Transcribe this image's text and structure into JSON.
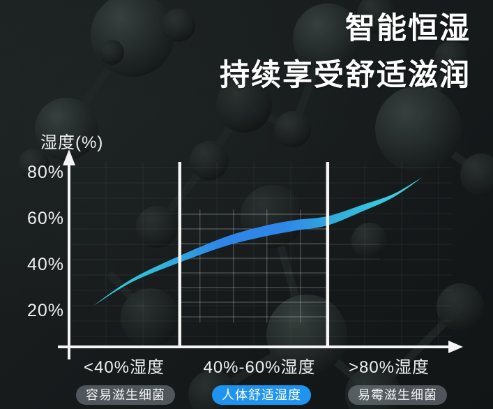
{
  "header": {
    "title_line1": "智能恒湿",
    "title_line2": "持续享受舒适滋润"
  },
  "chart_data": {
    "type": "line",
    "title": "智能恒湿 持续享受舒适滋润",
    "y_axis_label": "湿度(%)",
    "ylabel": "湿度(%)",
    "xlabel": "",
    "ylim": [
      0,
      90
    ],
    "grid": "on",
    "legend": "none",
    "y_ticks": [
      {
        "label": "80%",
        "value": 80
      },
      {
        "label": "60%",
        "value": 60
      },
      {
        "label": "40%",
        "value": 40
      },
      {
        "label": "20%",
        "value": 20
      }
    ],
    "zones": [
      {
        "label": "<40%湿度",
        "badge": "容易滋生细菌",
        "highlighted": false
      },
      {
        "label": "40%-60%湿度",
        "badge": "人体舒适湿度",
        "highlighted": true
      },
      {
        "label": ">80%湿度",
        "badge": "易霉滋生细菌",
        "highlighted": false
      }
    ],
    "zone_boundaries_fraction": [
      0.283,
      0.661
    ],
    "curve_points": [
      {
        "f": 0.061,
        "humidity": 22
      },
      {
        "f": 0.16,
        "humidity": 33
      },
      {
        "f": 0.278,
        "humidity": 42
      },
      {
        "f": 0.4,
        "humidity": 50
      },
      {
        "f": 0.5,
        "humidity": 54.5
      },
      {
        "f": 0.578,
        "humidity": 57
      },
      {
        "f": 0.661,
        "humidity": 59
      },
      {
        "f": 0.75,
        "humidity": 64.5
      },
      {
        "f": 0.83,
        "humidity": 70
      },
      {
        "f": 0.904,
        "humidity": 78
      }
    ],
    "curve_gradient": [
      {
        "offset": 0,
        "color": "#33ccd6"
      },
      {
        "offset": 0.2,
        "color": "#33b6da"
      },
      {
        "offset": 0.38,
        "color": "#2e86e8"
      },
      {
        "offset": 0.58,
        "color": "#2e86e8"
      },
      {
        "offset": 0.76,
        "color": "#31b2dc"
      },
      {
        "offset": 1,
        "color": "#41dde6"
      }
    ]
  },
  "colors": {
    "background": "#181c1d",
    "axis": "#f5f5f5",
    "text": "#f4f6f6",
    "badge_blue": "#2093ee",
    "badge_gray": "rgba(130,139,146,0.55)"
  }
}
